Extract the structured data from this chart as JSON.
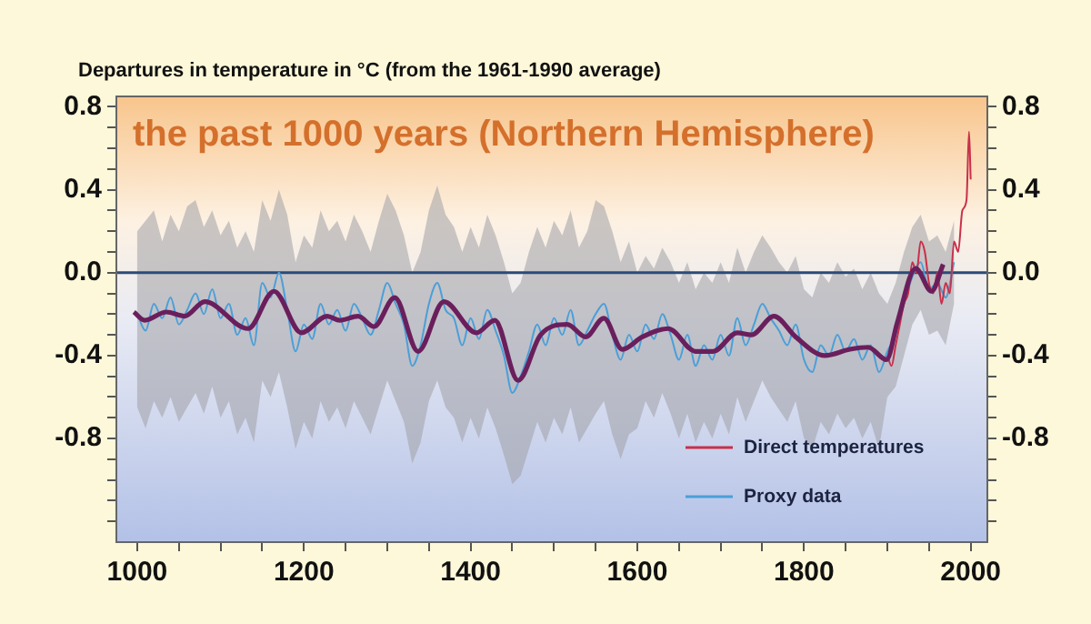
{
  "chart_data": {
    "type": "line",
    "title": "the past 1000 years (Northern Hemisphere)",
    "ylabel": "Departures in temperature in °C (from the 1961-1990 average)",
    "xlim": [
      975,
      2020
    ],
    "xticks": [
      1000,
      {
        "value": 1050,
        "label": null
      },
      1200,
      {
        "value": 1100,
        "label": null
      },
      {
        "value": 1150,
        "label": null
      },
      {
        "value": 1250,
        "label": null
      },
      {
        "value": 1300,
        "label": null
      },
      {
        "value": 1350,
        "label": null
      },
      1400,
      {
        "value": 1450,
        "label": null
      },
      {
        "value": 1500,
        "label": null
      },
      {
        "value": 1550,
        "label": null
      },
      1600,
      {
        "value": 1650,
        "label": null
      },
      {
        "value": 1700,
        "label": null
      },
      {
        "value": 1750,
        "label": null
      },
      1800,
      {
        "value": 1850,
        "label": null
      },
      {
        "value": 1900,
        "label": null
      },
      {
        "value": 1950,
        "label": null
      },
      2000
    ],
    "ylim": [
      -1.3,
      0.85
    ],
    "yticks": [
      -0.8,
      {
        "value": -1.2,
        "label": null
      },
      {
        "value": -1.1,
        "label": null
      },
      {
        "value": -1.0,
        "label": null
      },
      {
        "value": -0.9,
        "label": null
      },
      {
        "value": -0.7,
        "label": null
      },
      {
        "value": -0.6,
        "label": null
      },
      {
        "value": -0.5,
        "label": null
      },
      -0.4,
      {
        "value": -0.3,
        "label": null
      },
      {
        "value": -0.2,
        "label": null
      },
      {
        "value": -0.1,
        "label": null
      },
      {
        "value": 0,
        "label": "0.0"
      },
      {
        "value": 0.1,
        "label": null
      },
      {
        "value": 0.2,
        "label": null
      },
      {
        "value": 0.3,
        "label": null
      },
      0.4,
      {
        "value": 0.5,
        "label": null
      },
      {
        "value": 0.6,
        "label": null
      },
      {
        "value": 0.7,
        "label": null
      },
      0.8
    ],
    "y2lim": [
      -1.3,
      0.85
    ],
    "y2ticks": [
      -0.8,
      {
        "value": -1.2,
        "label": null
      },
      {
        "value": -1.1,
        "label": null
      },
      {
        "value": -1.0,
        "label": null
      },
      {
        "value": -0.9,
        "label": null
      },
      {
        "value": -0.7,
        "label": null
      },
      {
        "value": -0.6,
        "label": null
      },
      {
        "value": -0.5,
        "label": null
      },
      -0.4,
      {
        "value": -0.3,
        "label": null
      },
      {
        "value": -0.2,
        "label": null
      },
      {
        "value": -0.1,
        "label": null
      },
      {
        "value": 0,
        "label": "0.0"
      },
      {
        "value": 0.1,
        "label": null
      },
      {
        "value": 0.2,
        "label": null
      },
      {
        "value": 0.3,
        "label": null
      },
      0.4,
      {
        "value": 0.5,
        "label": null
      },
      {
        "value": 0.6,
        "label": null
      },
      {
        "value": 0.7,
        "label": null
      },
      0.8
    ],
    "grid": false,
    "legend": "bottom right",
    "marker": "none",
    "line_style": "solid",
    "ref_lines": [
      {
        "axis": "y",
        "value": 0,
        "color": "#2b4a78"
      }
    ],
    "series": [
      {
        "name": "Proxy data",
        "color": "#4a9fd8",
        "x": [
          1000,
          1010,
          1020,
          1030,
          1040,
          1050,
          1060,
          1070,
          1080,
          1090,
          1100,
          1110,
          1120,
          1130,
          1140,
          1150,
          1160,
          1170,
          1180,
          1190,
          1200,
          1210,
          1220,
          1230,
          1240,
          1250,
          1260,
          1270,
          1280,
          1290,
          1300,
          1310,
          1320,
          1330,
          1340,
          1350,
          1360,
          1370,
          1380,
          1390,
          1400,
          1410,
          1420,
          1430,
          1440,
          1450,
          1460,
          1470,
          1480,
          1490,
          1500,
          1510,
          1520,
          1530,
          1540,
          1550,
          1560,
          1570,
          1580,
          1590,
          1600,
          1610,
          1620,
          1630,
          1640,
          1650,
          1660,
          1670,
          1680,
          1690,
          1700,
          1710,
          1720,
          1730,
          1740,
          1750,
          1760,
          1770,
          1780,
          1790,
          1800,
          1810,
          1820,
          1830,
          1840,
          1850,
          1860,
          1870,
          1880,
          1890,
          1900,
          1910,
          1920,
          1930,
          1940,
          1950,
          1960,
          1970,
          1980
        ],
        "values": [
          -0.2,
          -0.28,
          -0.15,
          -0.22,
          -0.12,
          -0.25,
          -0.18,
          -0.1,
          -0.2,
          -0.08,
          -0.22,
          -0.15,
          -0.3,
          -0.22,
          -0.35,
          -0.05,
          -0.12,
          0.0,
          -0.18,
          -0.38,
          -0.25,
          -0.32,
          -0.15,
          -0.25,
          -0.18,
          -0.28,
          -0.15,
          -0.22,
          -0.3,
          -0.18,
          -0.05,
          -0.15,
          -0.25,
          -0.45,
          -0.35,
          -0.15,
          -0.05,
          -0.18,
          -0.22,
          -0.35,
          -0.22,
          -0.32,
          -0.18,
          -0.28,
          -0.4,
          -0.58,
          -0.5,
          -0.38,
          -0.25,
          -0.35,
          -0.22,
          -0.3,
          -0.18,
          -0.35,
          -0.28,
          -0.2,
          -0.15,
          -0.3,
          -0.42,
          -0.3,
          -0.38,
          -0.25,
          -0.32,
          -0.2,
          -0.3,
          -0.42,
          -0.3,
          -0.45,
          -0.35,
          -0.42,
          -0.3,
          -0.4,
          -0.22,
          -0.35,
          -0.25,
          -0.15,
          -0.22,
          -0.28,
          -0.35,
          -0.25,
          -0.42,
          -0.48,
          -0.35,
          -0.4,
          -0.3,
          -0.38,
          -0.32,
          -0.42,
          -0.35,
          -0.48,
          -0.38,
          -0.3,
          -0.15,
          -0.02,
          0.05,
          -0.08,
          -0.05,
          -0.12,
          0.05
        ],
        "upper": [
          0.2,
          0.25,
          0.3,
          0.15,
          0.28,
          0.2,
          0.32,
          0.35,
          0.22,
          0.3,
          0.18,
          0.25,
          0.12,
          0.2,
          0.1,
          0.35,
          0.25,
          0.4,
          0.28,
          0.05,
          0.18,
          0.12,
          0.3,
          0.2,
          0.25,
          0.15,
          0.28,
          0.2,
          0.1,
          0.25,
          0.38,
          0.3,
          0.18,
          0.0,
          0.1,
          0.3,
          0.42,
          0.28,
          0.22,
          0.1,
          0.22,
          0.12,
          0.28,
          0.18,
          0.05,
          -0.1,
          -0.05,
          0.1,
          0.22,
          0.12,
          0.25,
          0.18,
          0.3,
          0.12,
          0.2,
          0.35,
          0.32,
          0.2,
          0.05,
          0.15,
          0.0,
          0.08,
          0.02,
          0.12,
          0.05,
          -0.05,
          0.05,
          -0.08,
          0.0,
          -0.05,
          0.05,
          -0.05,
          0.12,
          0.0,
          0.1,
          0.18,
          0.12,
          0.05,
          0.0,
          0.08,
          -0.08,
          -0.12,
          0.0,
          -0.05,
          0.05,
          -0.02,
          0.02,
          -0.08,
          0.0,
          -0.1,
          -0.15,
          -0.05,
          0.1,
          0.22,
          0.28,
          0.15,
          0.18,
          0.1,
          0.25
        ],
        "lower": [
          -0.65,
          -0.75,
          -0.62,
          -0.7,
          -0.6,
          -0.72,
          -0.65,
          -0.58,
          -0.68,
          -0.55,
          -0.7,
          -0.62,
          -0.78,
          -0.7,
          -0.82,
          -0.52,
          -0.6,
          -0.48,
          -0.65,
          -0.85,
          -0.72,
          -0.8,
          -0.62,
          -0.72,
          -0.65,
          -0.75,
          -0.62,
          -0.7,
          -0.78,
          -0.65,
          -0.52,
          -0.62,
          -0.72,
          -0.92,
          -0.82,
          -0.62,
          -0.52,
          -0.65,
          -0.7,
          -0.82,
          -0.7,
          -0.8,
          -0.65,
          -0.75,
          -0.88,
          -1.02,
          -0.98,
          -0.85,
          -0.72,
          -0.82,
          -0.7,
          -0.78,
          -0.65,
          -0.82,
          -0.75,
          -0.68,
          -0.62,
          -0.78,
          -0.9,
          -0.78,
          -0.75,
          -0.62,
          -0.7,
          -0.58,
          -0.68,
          -0.8,
          -0.68,
          -0.82,
          -0.72,
          -0.8,
          -0.68,
          -0.78,
          -0.6,
          -0.72,
          -0.62,
          -0.52,
          -0.6,
          -0.66,
          -0.72,
          -0.62,
          -0.8,
          -0.85,
          -0.72,
          -0.78,
          -0.68,
          -0.75,
          -0.7,
          -0.8,
          -0.72,
          -0.85,
          -0.6,
          -0.55,
          -0.4,
          -0.25,
          -0.18,
          -0.3,
          -0.28,
          -0.35,
          -0.15
        ]
      },
      {
        "name": "Direct temperatures",
        "color": "#c8304a",
        "x": [
          1900,
          1905,
          1910,
          1915,
          1920,
          1925,
          1930,
          1935,
          1940,
          1945,
          1950,
          1955,
          1960,
          1965,
          1970,
          1975,
          1980,
          1985,
          1990,
          1995,
          1998,
          2000
        ],
        "values": [
          -0.4,
          -0.45,
          -0.35,
          -0.25,
          -0.15,
          -0.1,
          0.05,
          0.0,
          0.15,
          0.1,
          -0.05,
          -0.1,
          0.0,
          -0.15,
          -0.05,
          -0.1,
          0.15,
          0.1,
          0.3,
          0.35,
          0.68,
          0.45
        ]
      },
      {
        "color": "#6a1f5c",
        "x": [
          996,
          1009,
          1035,
          1057,
          1081,
          1133,
          1164,
          1197,
          1228,
          1243,
          1265,
          1284,
          1309,
          1337,
          1368,
          1407,
          1429,
          1457,
          1484,
          1516,
          1538,
          1560,
          1582,
          1606,
          1637,
          1670,
          1691,
          1720,
          1737,
          1764,
          1790,
          1825,
          1855,
          1877,
          1899,
          1912,
          1934,
          1953,
          1967
        ],
        "values": [
          -0.19,
          -0.23,
          -0.19,
          -0.21,
          -0.14,
          -0.27,
          -0.09,
          -0.29,
          -0.21,
          -0.23,
          -0.21,
          -0.26,
          -0.12,
          -0.38,
          -0.14,
          -0.29,
          -0.23,
          -0.52,
          -0.3,
          -0.25,
          -0.31,
          -0.22,
          -0.37,
          -0.31,
          -0.27,
          -0.38,
          -0.38,
          -0.29,
          -0.3,
          -0.21,
          -0.31,
          -0.4,
          -0.37,
          -0.36,
          -0.42,
          -0.24,
          0.02,
          -0.09,
          0.04
        ]
      }
    ]
  }
}
